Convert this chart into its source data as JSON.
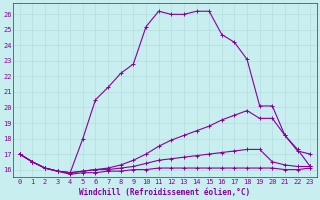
{
  "xlabel": "Windchill (Refroidissement éolien,°C)",
  "bg_color": "#c8eef0",
  "grid_color": "#b0d8dc",
  "line_color": "#880099",
  "xlim": [
    -0.5,
    23.5
  ],
  "ylim": [
    15.5,
    26.7
  ],
  "xticks": [
    0,
    1,
    2,
    3,
    4,
    5,
    6,
    7,
    8,
    9,
    10,
    11,
    12,
    13,
    14,
    15,
    16,
    17,
    18,
    19,
    20,
    21,
    22,
    23
  ],
  "yticks": [
    16,
    17,
    18,
    19,
    20,
    21,
    22,
    23,
    24,
    25,
    26
  ],
  "line1_x": [
    0,
    1,
    2,
    3,
    4,
    5,
    6,
    7,
    8,
    9,
    10,
    11,
    12,
    13,
    14,
    15,
    16,
    17,
    18,
    19,
    20,
    21,
    22,
    23
  ],
  "line1_y": [
    17.0,
    16.5,
    16.1,
    15.9,
    15.8,
    18.0,
    20.5,
    21.3,
    22.2,
    22.8,
    25.2,
    26.2,
    26.0,
    26.0,
    26.2,
    26.2,
    24.7,
    24.2,
    23.1,
    20.1,
    20.1,
    18.2,
    17.2,
    17.0
  ],
  "line2_x": [
    0,
    1,
    2,
    3,
    4,
    5,
    6,
    7,
    8,
    9,
    10,
    11,
    12,
    13,
    14,
    15,
    16,
    17,
    18,
    19,
    20,
    21,
    22,
    23
  ],
  "line2_y": [
    17.0,
    16.5,
    16.1,
    15.9,
    15.8,
    15.9,
    16.0,
    16.1,
    16.3,
    16.6,
    17.0,
    17.5,
    17.9,
    18.2,
    18.5,
    18.8,
    19.2,
    19.5,
    19.8,
    19.3,
    19.3,
    18.2,
    17.3,
    16.2
  ],
  "line3_x": [
    0,
    1,
    2,
    3,
    4,
    5,
    6,
    7,
    8,
    9,
    10,
    11,
    12,
    13,
    14,
    15,
    16,
    17,
    18,
    19,
    20,
    21,
    22,
    23
  ],
  "line3_y": [
    17.0,
    16.5,
    16.1,
    15.9,
    15.8,
    15.9,
    16.0,
    16.0,
    16.1,
    16.2,
    16.4,
    16.6,
    16.7,
    16.8,
    16.9,
    17.0,
    17.1,
    17.2,
    17.3,
    17.3,
    16.5,
    16.3,
    16.2,
    16.2
  ],
  "line4_x": [
    0,
    1,
    2,
    3,
    4,
    5,
    6,
    7,
    8,
    9,
    10,
    11,
    12,
    13,
    14,
    15,
    16,
    17,
    18,
    19,
    20,
    21,
    22,
    23
  ],
  "line4_y": [
    17.0,
    16.5,
    16.1,
    15.9,
    15.7,
    15.8,
    15.8,
    15.9,
    15.9,
    16.0,
    16.0,
    16.1,
    16.1,
    16.1,
    16.1,
    16.1,
    16.1,
    16.1,
    16.1,
    16.1,
    16.1,
    16.0,
    16.0,
    16.1
  ],
  "marker": "+",
  "markersize": 3,
  "linewidth": 0.8,
  "xlabel_fontsize": 5.5,
  "tick_fontsize": 5.0
}
